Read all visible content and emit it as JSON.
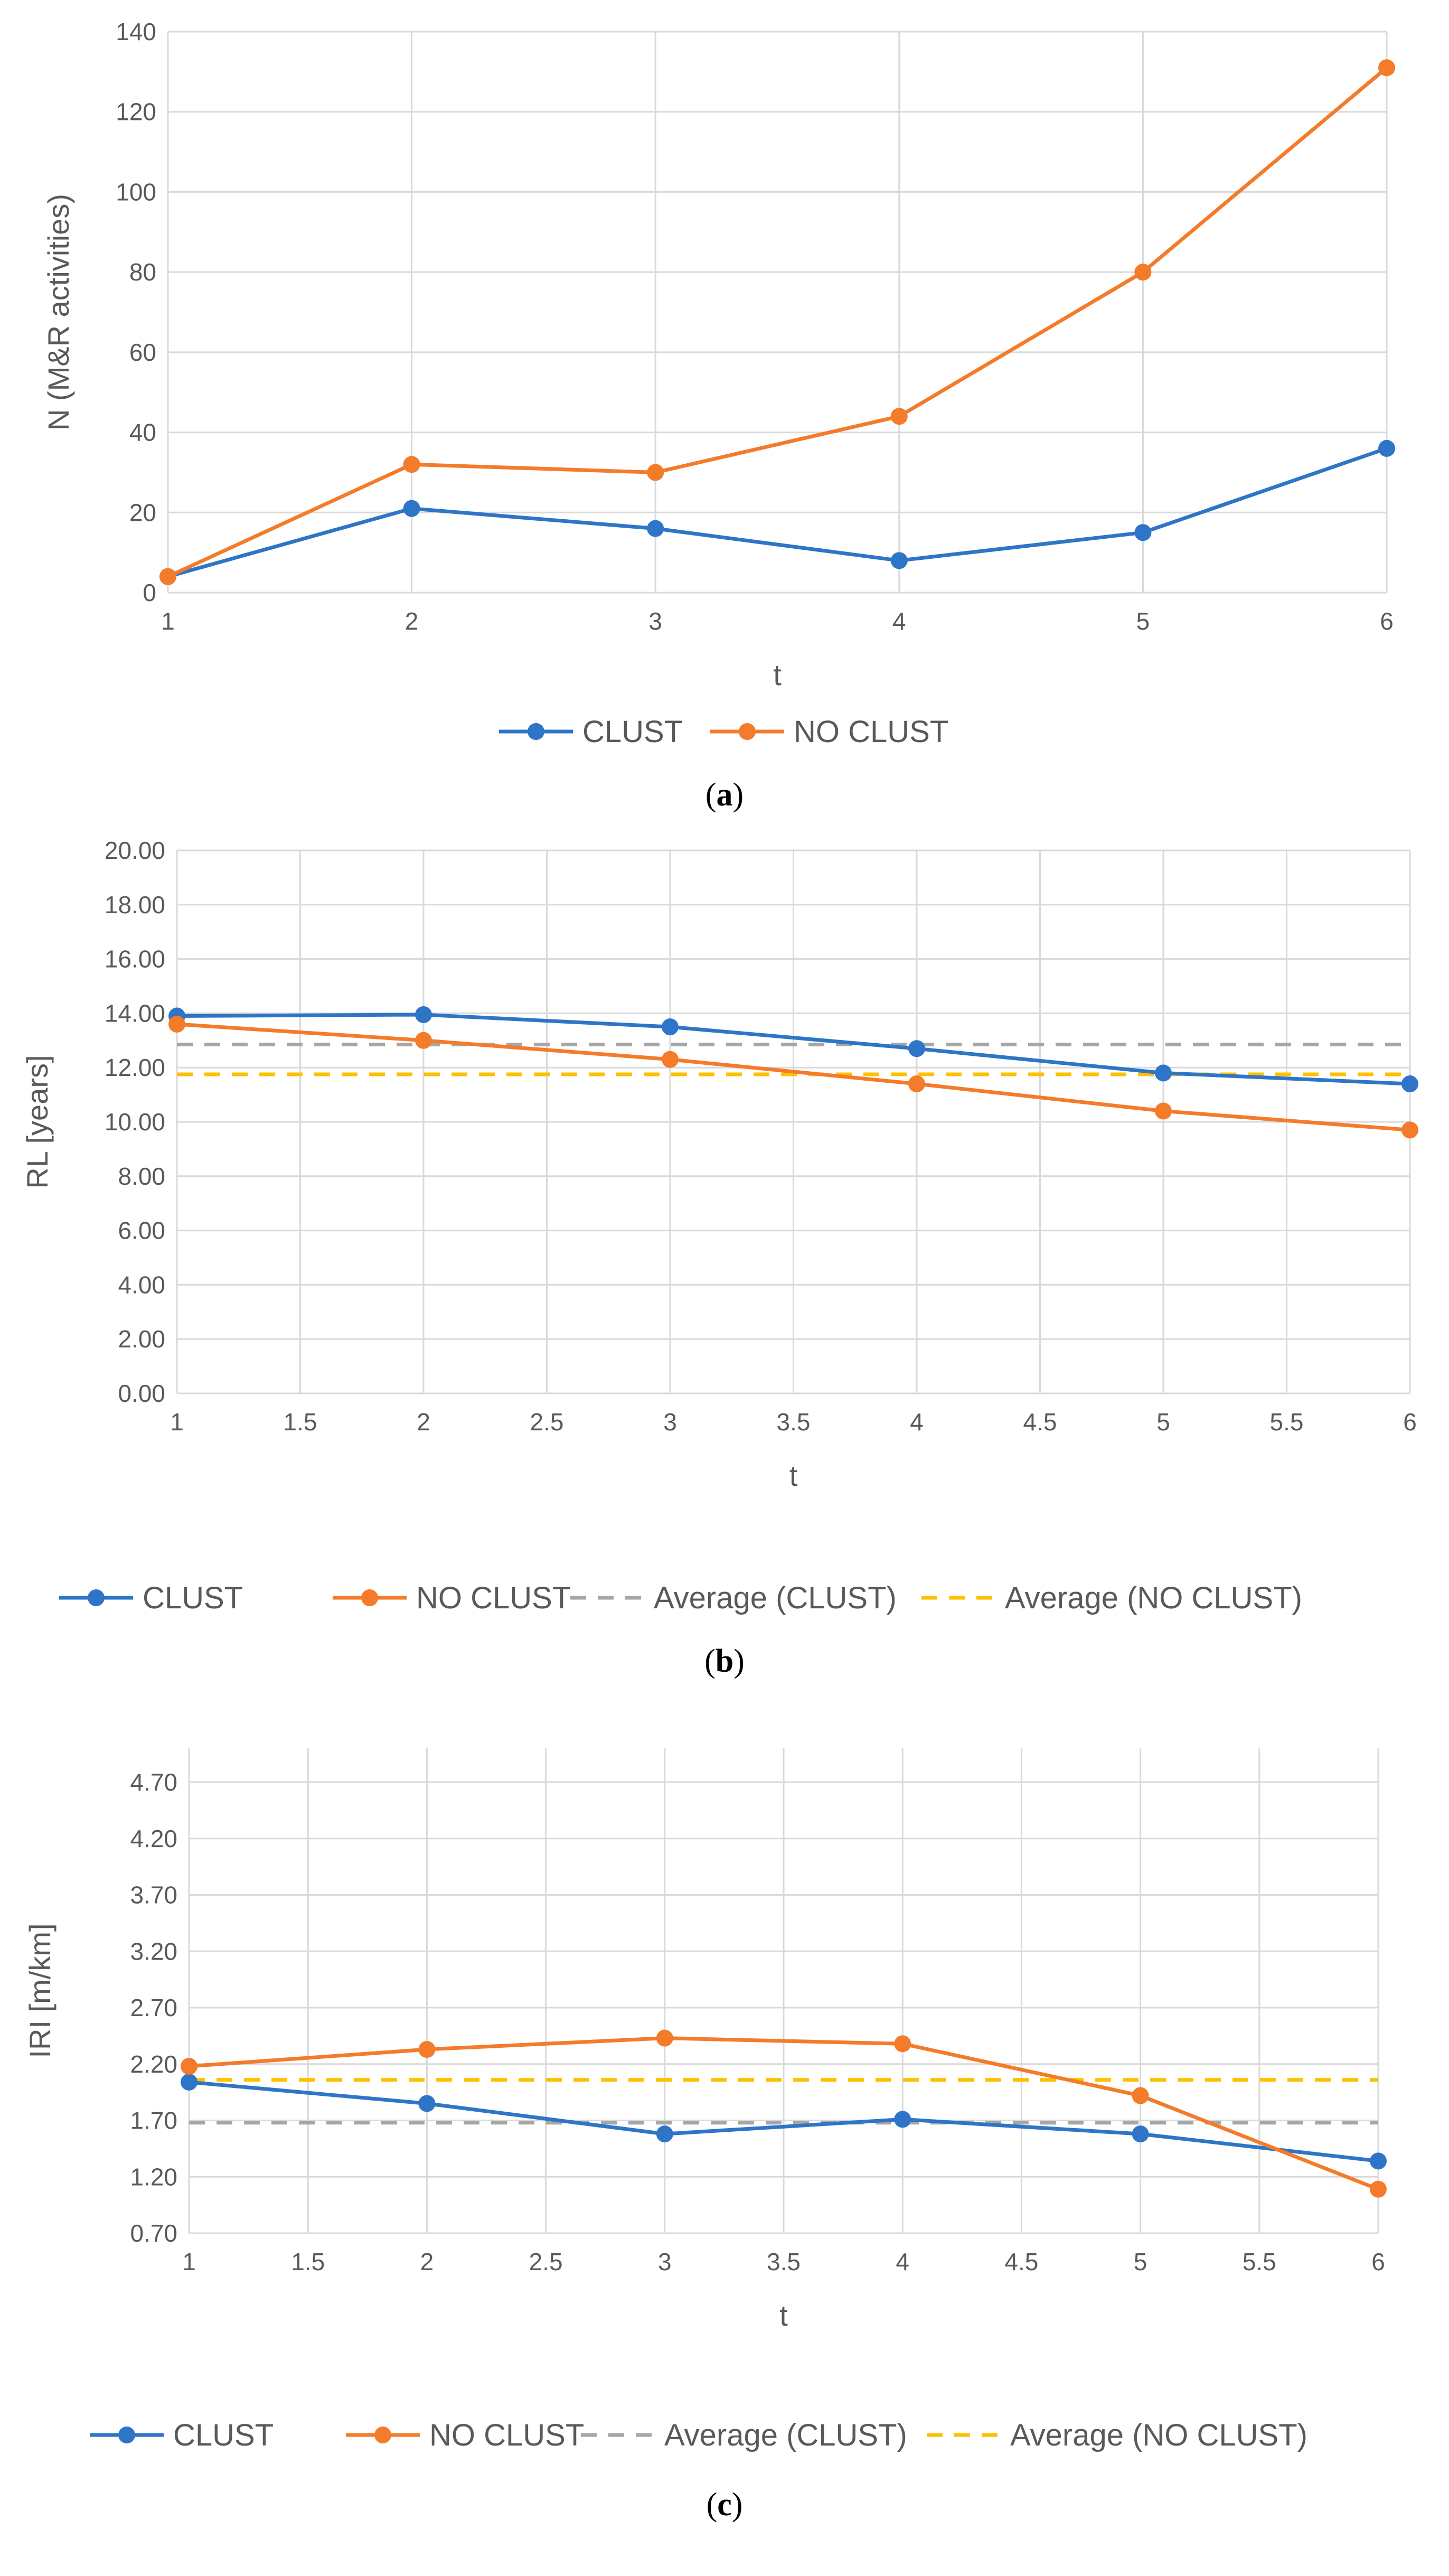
{
  "colors": {
    "clust": "#2e75c7",
    "no_clust": "#f47b2a",
    "avg_clust": "#a6a6a6",
    "avg_no_clust": "#ffc000",
    "grid": "#d9d9d9",
    "text": "#595959"
  },
  "chart_data": [
    {
      "type": "line",
      "panel_label": "a",
      "xlabel": "t",
      "ylabel": "N (M&R activities)",
      "x": [
        1,
        2,
        3,
        4,
        5,
        6
      ],
      "xlim": [
        1,
        6
      ],
      "ylim": [
        0,
        140
      ],
      "x_ticks": [
        "1",
        "2",
        "3",
        "4",
        "5",
        "6"
      ],
      "y_ticks": [
        "0",
        "20",
        "40",
        "60",
        "80",
        "100",
        "120",
        "140"
      ],
      "grid": true,
      "legend": "bottom",
      "series": [
        {
          "name": "CLUST",
          "values": [
            4,
            21,
            16,
            8,
            15,
            36
          ]
        },
        {
          "name": "NO CLUST",
          "values": [
            4,
            32,
            30,
            44,
            80,
            131
          ]
        }
      ]
    },
    {
      "type": "line",
      "panel_label": "b",
      "xlabel": "t",
      "ylabel": "RL [years]",
      "x": [
        1,
        2,
        3,
        4,
        5,
        6
      ],
      "xlim": [
        1,
        6
      ],
      "ylim": [
        0,
        20
      ],
      "x_ticks": [
        "1",
        "1.5",
        "2",
        "2.5",
        "3",
        "3.5",
        "4",
        "4.5",
        "5",
        "5.5",
        "6"
      ],
      "y_ticks": [
        "0.00",
        "2.00",
        "4.00",
        "6.00",
        "8.00",
        "10.00",
        "12.00",
        "14.00",
        "16.00",
        "18.00",
        "20.00"
      ],
      "grid": true,
      "legend": "bottom",
      "series": [
        {
          "name": "CLUST",
          "values": [
            13.9,
            13.95,
            13.5,
            12.7,
            11.8,
            11.4
          ]
        },
        {
          "name": "NO CLUST",
          "values": [
            13.6,
            13.0,
            12.3,
            11.4,
            10.4,
            9.7
          ]
        }
      ],
      "averages": [
        {
          "name": "Average (CLUST)",
          "value": 12.85
        },
        {
          "name": "Average (NO CLUST)",
          "value": 11.75
        }
      ]
    },
    {
      "type": "line",
      "panel_label": "c",
      "xlabel": "t",
      "ylabel": "IRI [m/km]",
      "x": [
        1,
        2,
        3,
        4,
        5,
        6
      ],
      "xlim": [
        1,
        6
      ],
      "ylim": [
        0.7,
        5.0
      ],
      "x_ticks": [
        "1",
        "1.5",
        "2",
        "2.5",
        "3",
        "3.5",
        "4",
        "4.5",
        "5",
        "5.5",
        "6"
      ],
      "y_ticks": [
        "0.70",
        "1.20",
        "1.70",
        "2.20",
        "2.70",
        "3.20",
        "3.70",
        "4.20",
        "4.70"
      ],
      "grid": true,
      "legend": "bottom",
      "series": [
        {
          "name": "CLUST",
          "values": [
            2.04,
            1.85,
            1.58,
            1.71,
            1.58,
            1.34
          ]
        },
        {
          "name": "NO CLUST",
          "values": [
            2.18,
            2.33,
            2.43,
            2.38,
            1.92,
            1.09
          ]
        }
      ],
      "averages": [
        {
          "name": "Average (CLUST)",
          "value": 1.68
        },
        {
          "name": "Average (NO CLUST)",
          "value": 2.06
        }
      ]
    }
  ]
}
